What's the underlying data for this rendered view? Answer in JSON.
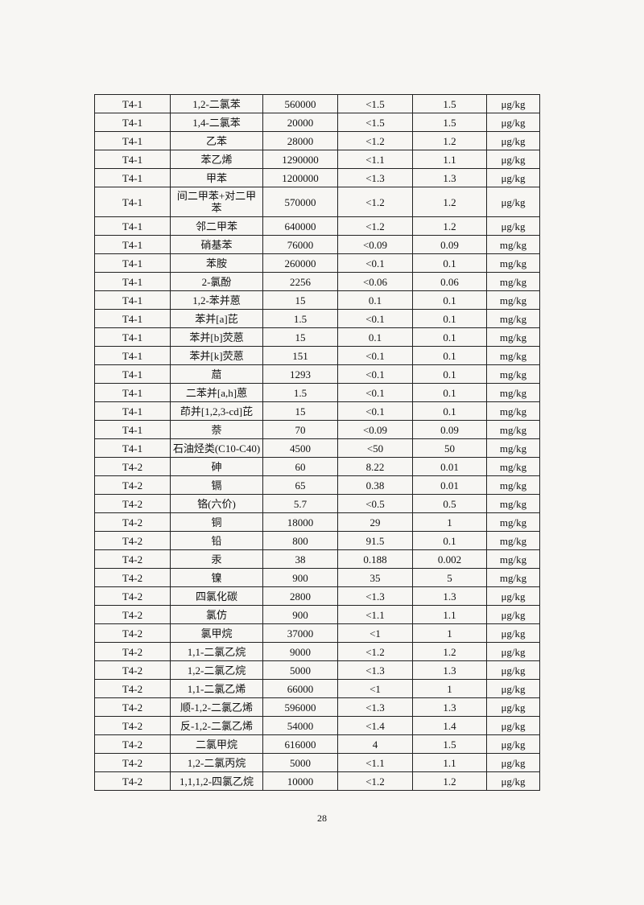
{
  "table": {
    "rows": [
      [
        "T4-1",
        "1,2-二氯苯",
        "560000",
        "<1.5",
        "1.5",
        "μg/kg"
      ],
      [
        "T4-1",
        "1,4-二氯苯",
        "20000",
        "<1.5",
        "1.5",
        "μg/kg"
      ],
      [
        "T4-1",
        "乙苯",
        "28000",
        "<1.2",
        "1.2",
        "μg/kg"
      ],
      [
        "T4-1",
        "苯乙烯",
        "1290000",
        "<1.1",
        "1.1",
        "μg/kg"
      ],
      [
        "T4-1",
        "甲苯",
        "1200000",
        "<1.3",
        "1.3",
        "μg/kg"
      ],
      [
        "T4-1",
        "间二甲苯+对二甲苯",
        "570000",
        "<1.2",
        "1.2",
        "μg/kg"
      ],
      [
        "T4-1",
        "邻二甲苯",
        "640000",
        "<1.2",
        "1.2",
        "μg/kg"
      ],
      [
        "T4-1",
        "硝基苯",
        "76000",
        "<0.09",
        "0.09",
        "mg/kg"
      ],
      [
        "T4-1",
        "苯胺",
        "260000",
        "<0.1",
        "0.1",
        "mg/kg"
      ],
      [
        "T4-1",
        "2-氯酚",
        "2256",
        "<0.06",
        "0.06",
        "mg/kg"
      ],
      [
        "T4-1",
        "1,2-苯并蒽",
        "15",
        "0.1",
        "0.1",
        "mg/kg"
      ],
      [
        "T4-1",
        "苯并[a]芘",
        "1.5",
        "<0.1",
        "0.1",
        "mg/kg"
      ],
      [
        "T4-1",
        "苯并[b]荧蒽",
        "15",
        "0.1",
        "0.1",
        "mg/kg"
      ],
      [
        "T4-1",
        "苯并[k]荧蒽",
        "151",
        "<0.1",
        "0.1",
        "mg/kg"
      ],
      [
        "T4-1",
        "䓛",
        "1293",
        "<0.1",
        "0.1",
        "mg/kg"
      ],
      [
        "T4-1",
        "二苯并[a,h]蒽",
        "1.5",
        "<0.1",
        "0.1",
        "mg/kg"
      ],
      [
        "T4-1",
        "茚并[1,2,3-cd]芘",
        "15",
        "<0.1",
        "0.1",
        "mg/kg"
      ],
      [
        "T4-1",
        "萘",
        "70",
        "<0.09",
        "0.09",
        "mg/kg"
      ],
      [
        "T4-1",
        "石油烃类(C10-C40)",
        "4500",
        "<50",
        "50",
        "mg/kg"
      ],
      [
        "T4-2",
        "砷",
        "60",
        "8.22",
        "0.01",
        "mg/kg"
      ],
      [
        "T4-2",
        "镉",
        "65",
        "0.38",
        "0.01",
        "mg/kg"
      ],
      [
        "T4-2",
        "铬(六价)",
        "5.7",
        "<0.5",
        "0.5",
        "mg/kg"
      ],
      [
        "T4-2",
        "铜",
        "18000",
        "29",
        "1",
        "mg/kg"
      ],
      [
        "T4-2",
        "铅",
        "800",
        "91.5",
        "0.1",
        "mg/kg"
      ],
      [
        "T4-2",
        "汞",
        "38",
        "0.188",
        "0.002",
        "mg/kg"
      ],
      [
        "T4-2",
        "镍",
        "900",
        "35",
        "5",
        "mg/kg"
      ],
      [
        "T4-2",
        "四氯化碳",
        "2800",
        "<1.3",
        "1.3",
        "μg/kg"
      ],
      [
        "T4-2",
        "氯仿",
        "900",
        "<1.1",
        "1.1",
        "μg/kg"
      ],
      [
        "T4-2",
        "氯甲烷",
        "37000",
        "<1",
        "1",
        "μg/kg"
      ],
      [
        "T4-2",
        "1,1-二氯乙烷",
        "9000",
        "<1.2",
        "1.2",
        "μg/kg"
      ],
      [
        "T4-2",
        "1,2-二氯乙烷",
        "5000",
        "<1.3",
        "1.3",
        "μg/kg"
      ],
      [
        "T4-2",
        "1,1-二氯乙烯",
        "66000",
        "<1",
        "1",
        "μg/kg"
      ],
      [
        "T4-2",
        "顺-1,2-二氯乙烯",
        "596000",
        "<1.3",
        "1.3",
        "μg/kg"
      ],
      [
        "T4-2",
        "反-1,2-二氯乙烯",
        "54000",
        "<1.4",
        "1.4",
        "μg/kg"
      ],
      [
        "T4-2",
        "二氯甲烷",
        "616000",
        "4",
        "1.5",
        "μg/kg"
      ],
      [
        "T4-2",
        "1,2-二氯丙烷",
        "5000",
        "<1.1",
        "1.1",
        "μg/kg"
      ],
      [
        "T4-2",
        "1,1,1,2-四氯乙烷",
        "10000",
        "<1.2",
        "1.2",
        "μg/kg"
      ]
    ]
  },
  "footer": {
    "page_number": "28"
  }
}
